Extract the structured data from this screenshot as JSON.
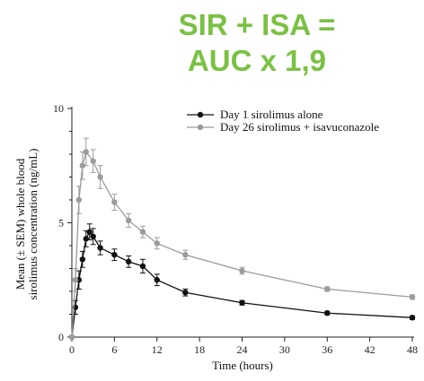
{
  "banner": {
    "line1": "SIR + ISA =",
    "line2": "AUC x 1,9",
    "color": "#7ac143"
  },
  "chart_data": {
    "type": "line",
    "xlabel": "Time (hours)",
    "ylabel_line1": "Mean (± SEM) whole blood",
    "ylabel_line2": "sirolimus concentration (ng/mL)",
    "xlim": [
      0,
      48
    ],
    "ylim": [
      0,
      10
    ],
    "xticks": [
      0,
      6,
      12,
      18,
      24,
      30,
      36,
      42,
      48
    ],
    "yticks": [
      0,
      5,
      10
    ],
    "grid": false,
    "legend_position": "top-right",
    "series": [
      {
        "name": "Day 1 sirolimus alone",
        "color": "#111111",
        "x": [
          0,
          0.5,
          1,
          1.5,
          2,
          2.5,
          3,
          4,
          6,
          8,
          10,
          12,
          16,
          24,
          36,
          48
        ],
        "y": [
          0.0,
          1.3,
          2.5,
          3.4,
          4.3,
          4.6,
          4.4,
          3.9,
          3.6,
          3.3,
          3.1,
          2.5,
          1.95,
          1.5,
          1.05,
          0.85
        ],
        "err": [
          0.0,
          0.3,
          0.4,
          0.35,
          0.35,
          0.35,
          0.35,
          0.3,
          0.25,
          0.25,
          0.3,
          0.25,
          0.15,
          0.1,
          0.08,
          0.08
        ]
      },
      {
        "name": "Day 26 sirolimus + isavuconazole",
        "color": "#9b9b9b",
        "x": [
          0,
          0.5,
          1,
          1.5,
          2,
          3,
          4,
          6,
          8,
          10,
          12,
          16,
          24,
          36,
          48
        ],
        "y": [
          0.0,
          2.5,
          6.0,
          7.5,
          8.1,
          7.7,
          7.0,
          5.9,
          5.1,
          4.6,
          4.1,
          3.6,
          2.9,
          2.1,
          1.75
        ],
        "err": [
          0.0,
          0.5,
          0.6,
          0.6,
          0.6,
          0.5,
          0.5,
          0.35,
          0.3,
          0.25,
          0.25,
          0.2,
          0.15,
          0.1,
          0.1
        ]
      }
    ]
  }
}
